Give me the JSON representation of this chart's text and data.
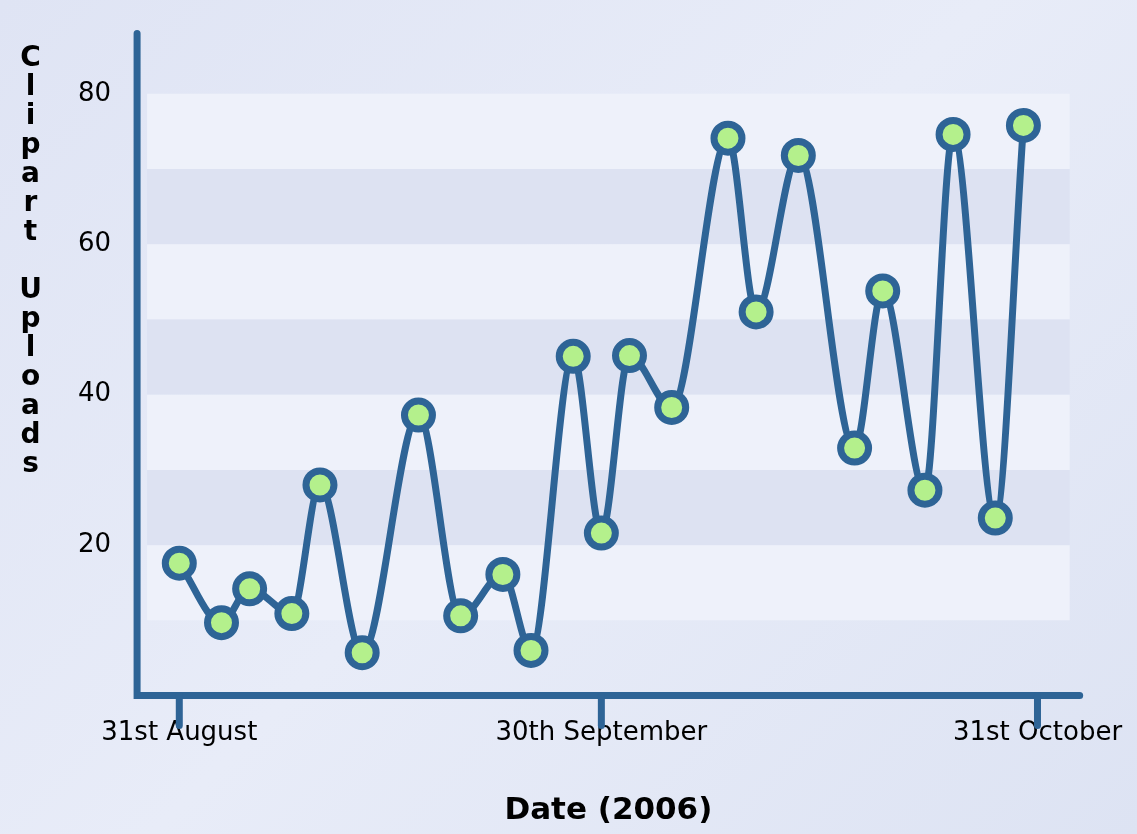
{
  "chart_data": {
    "type": "line",
    "xlabel": "Date (2006)",
    "ylabel": "Clipart Uploads",
    "x": [
      "2006-08-31",
      "2006-09-03",
      "2006-09-05",
      "2006-09-08",
      "2006-09-10",
      "2006-09-13",
      "2006-09-17",
      "2006-09-20",
      "2006-09-23",
      "2006-09-25",
      "2006-09-28",
      "2006-09-30",
      "2006-10-02",
      "2006-10-05",
      "2006-10-09",
      "2006-10-11",
      "2006-10-14",
      "2006-10-18",
      "2006-10-20",
      "2006-10-23",
      "2006-10-25",
      "2006-10-28",
      "2006-10-30"
    ],
    "series": [
      {
        "color": "#2e6496",
        "values": [
          17.6,
          9.7,
          14.2,
          10.9,
          28,
          5.7,
          37.3,
          10.6,
          16.1,
          6,
          45.1,
          21.6,
          45.2,
          38.3,
          74.1,
          51,
          71.8,
          32.9,
          53.8,
          27.3,
          74.6,
          23.6,
          75.8
        ]
      }
    ],
    "xlim": [
      "2006-08-28",
      "2006-11-03"
    ],
    "xticks": [
      {
        "value": "2006-08-31",
        "label": "31st August"
      },
      {
        "value": "2006-09-30",
        "label": "30th September"
      },
      {
        "value": "2006-10-31",
        "label": "31st October"
      }
    ],
    "ylim": [
      0,
      88
    ],
    "yticks": [
      20,
      40,
      60,
      80
    ],
    "bands": [
      {
        "axis": "y",
        "from": 70,
        "to": 80,
        "color": "#eef1fa"
      },
      {
        "axis": "y",
        "from": 60,
        "to": 70,
        "color": "#dde2f2"
      },
      {
        "axis": "y",
        "from": 50,
        "to": 60,
        "color": "#eef1fa"
      },
      {
        "axis": "y",
        "from": 40,
        "to": 50,
        "color": "#dde2f2"
      },
      {
        "axis": "y",
        "from": 30,
        "to": 40,
        "color": "#eef1fa"
      },
      {
        "axis": "y",
        "from": 20,
        "to": 30,
        "color": "#dde2f2"
      },
      {
        "axis": "y",
        "from": 10,
        "to": 20,
        "color": "#eef1fa"
      }
    ],
    "legend": false,
    "marker": "circle",
    "line_style": "solid"
  }
}
